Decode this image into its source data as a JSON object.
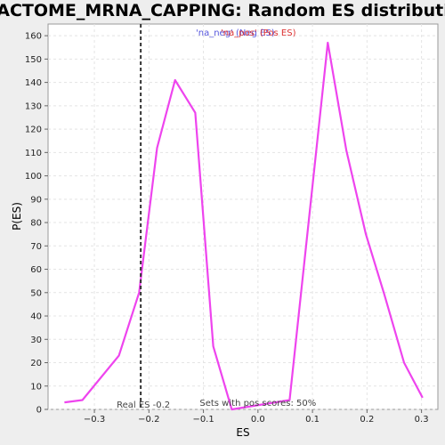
{
  "chart_data": {
    "type": "line",
    "title": "REACTOME_MRNA_CAPPING: Random ES distribution",
    "xlabel": "ES",
    "ylabel": "P(ES)",
    "xlim": [
      -0.385,
      0.33
    ],
    "ylim": [
      0,
      165
    ],
    "x_ticks": [
      -0.3,
      -0.2,
      -0.1,
      0.0,
      0.1,
      0.2,
      0.3
    ],
    "x_tick_labels": [
      "−0.3",
      "−0.2",
      "−0.1",
      "0.0",
      "0.1",
      "0.2",
      "0.3"
    ],
    "y_ticks": [
      0,
      10,
      20,
      30,
      40,
      50,
      60,
      70,
      80,
      90,
      100,
      110,
      120,
      130,
      140,
      150,
      160
    ],
    "grid": true,
    "legend": {
      "placement": "top-center",
      "neg_label": "'na_neg' (Neg ES)",
      "pos_label": "'na_pos' (Pos ES)"
    },
    "series": [
      {
        "color": "#ee44ee",
        "x": [
          -0.355,
          -0.322,
          -0.255,
          -0.218,
          -0.185,
          -0.152,
          -0.115,
          -0.082,
          -0.048,
          0.058,
          0.128,
          0.162,
          0.198,
          0.232,
          0.268,
          0.302
        ],
        "y": [
          3,
          4,
          23,
          50,
          112,
          141,
          127,
          27,
          0,
          4,
          157,
          111,
          75,
          49,
          20,
          5
        ]
      }
    ],
    "real_es": {
      "x": -0.215,
      "label": "Real ES -0.2"
    },
    "annotation": "Sets with pos scores: 50%"
  }
}
